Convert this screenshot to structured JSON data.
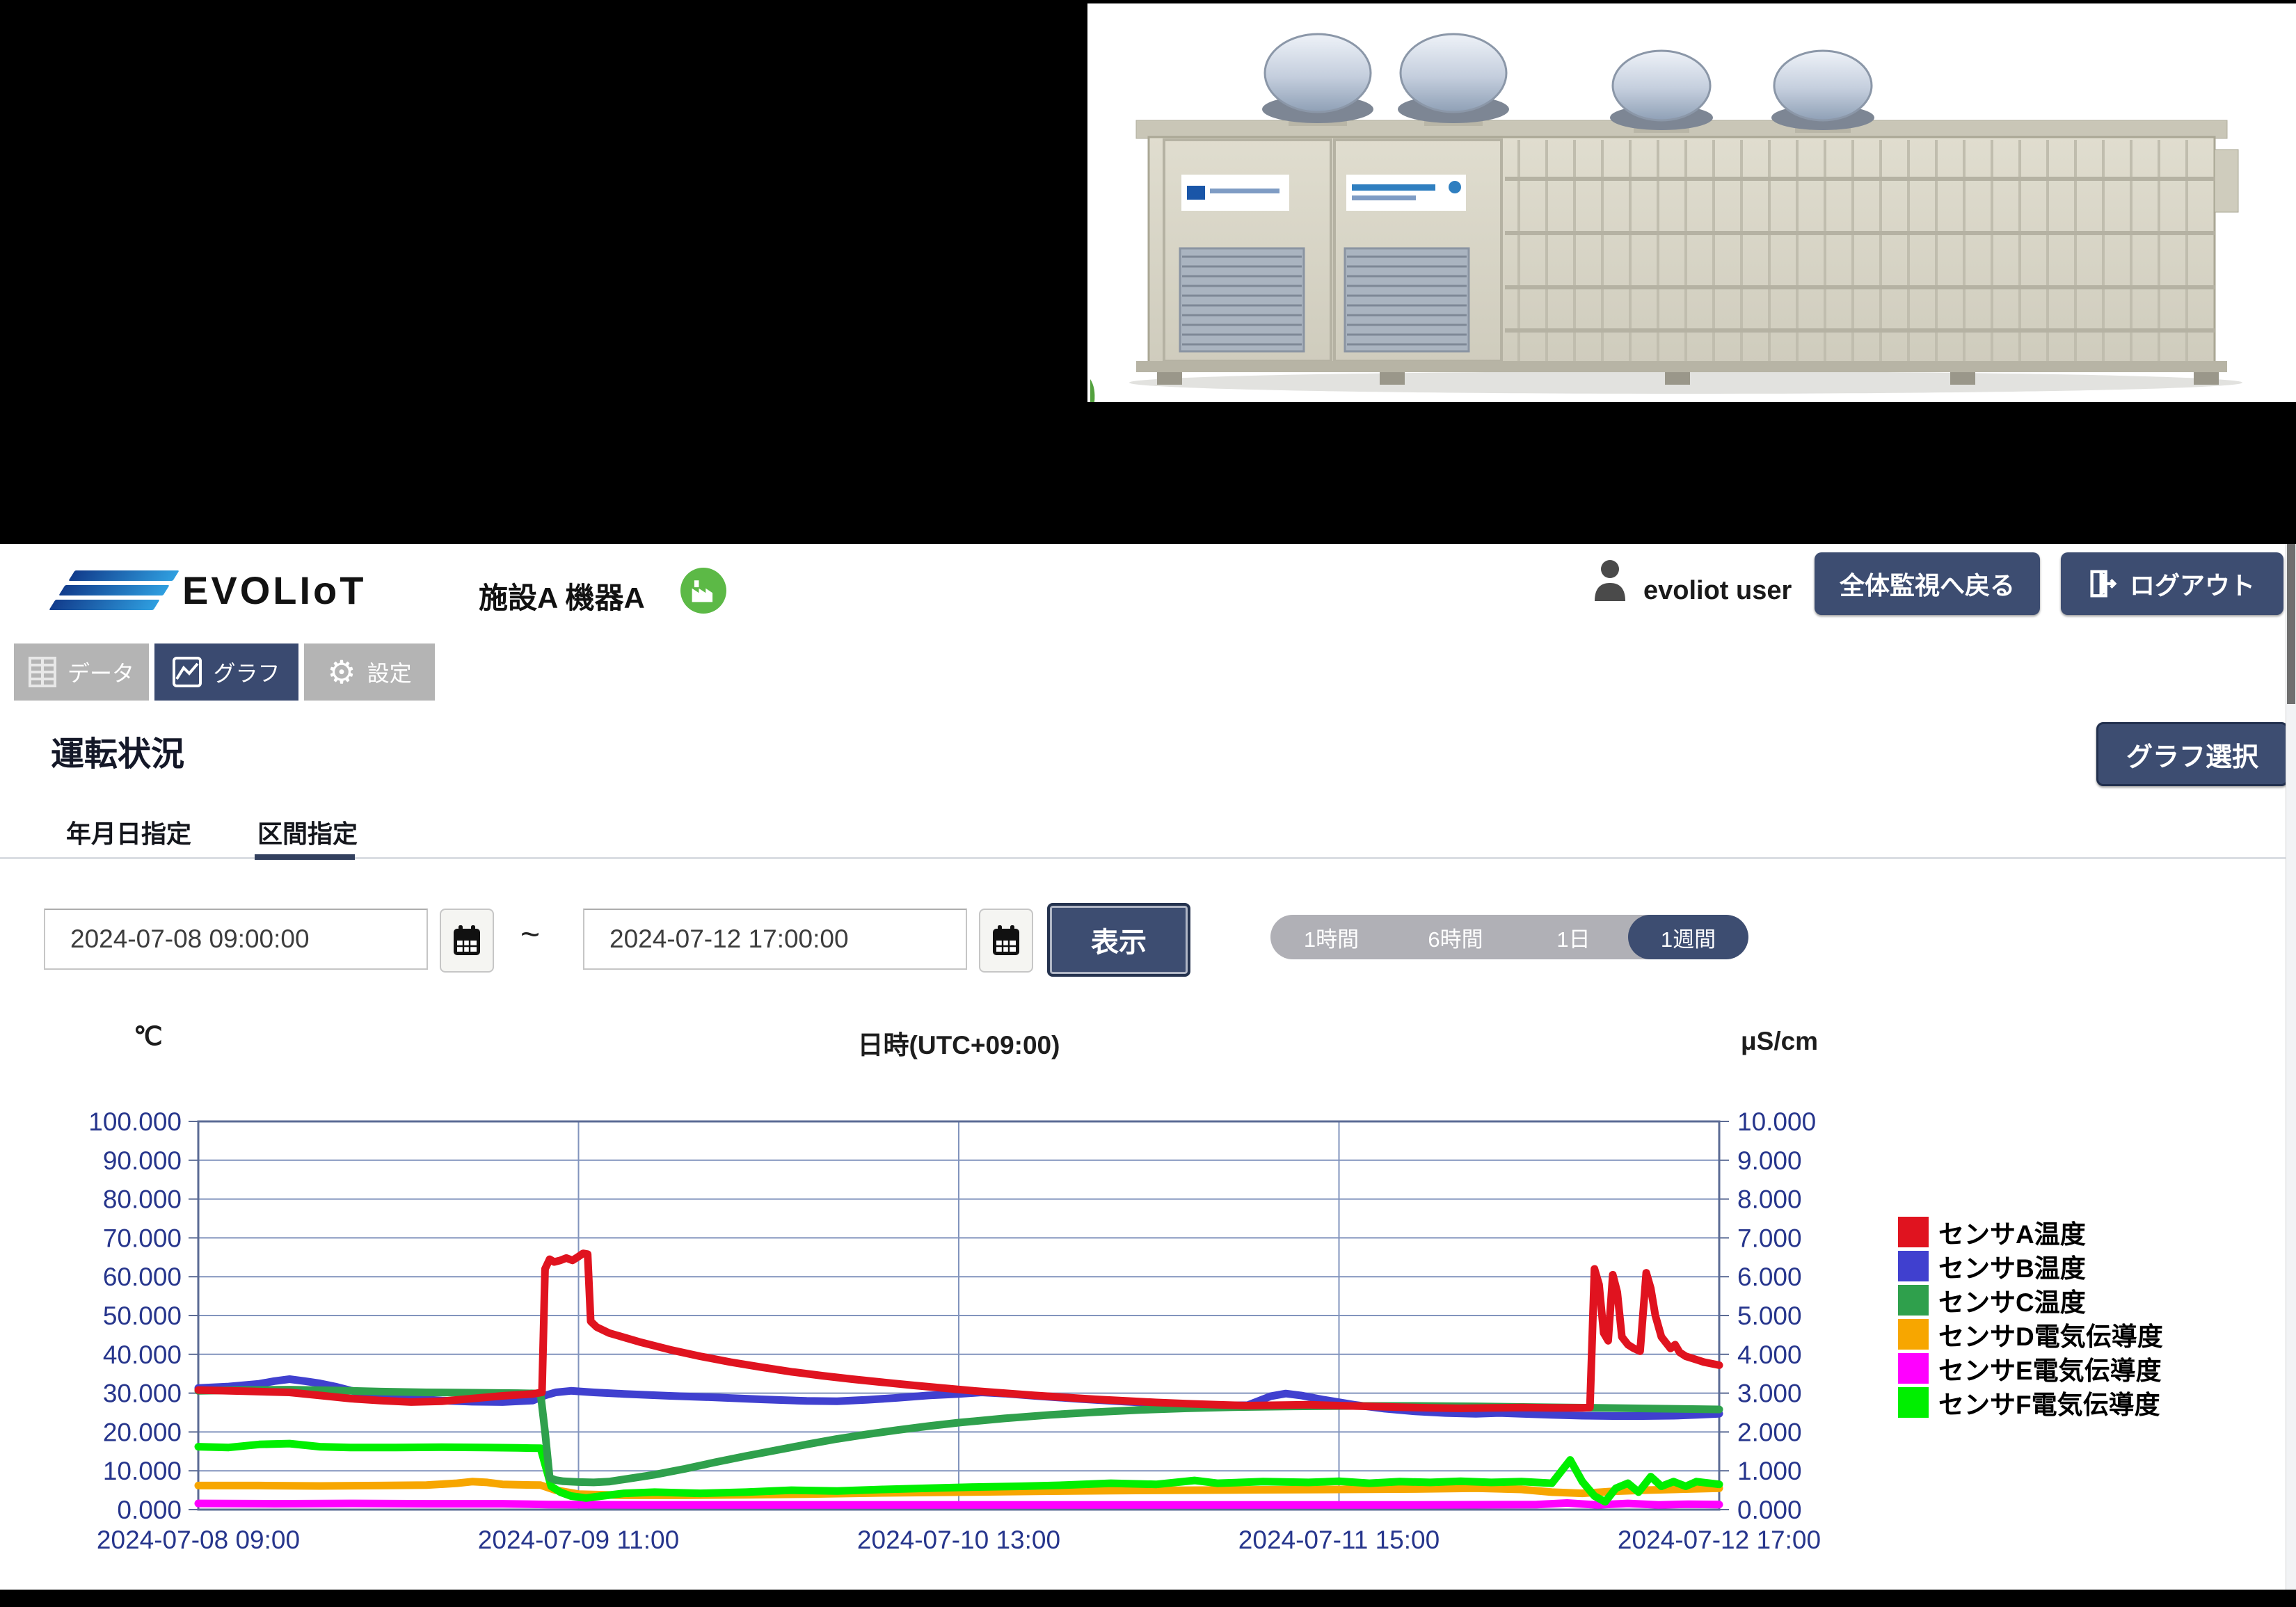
{
  "header": {
    "brand": "EVOLIoT",
    "facility_device": "施設A  機器A",
    "user": "evoliot user",
    "back_button": "全体監視へ戻る",
    "logout_button": "ログアウト"
  },
  "nav": {
    "tabs": [
      {
        "label": "データ"
      },
      {
        "label": "グラフ"
      },
      {
        "label": "設定"
      }
    ]
  },
  "page": {
    "title": "運転状況",
    "graph_select_button": "グラフ選択",
    "subtabs": [
      {
        "label": "年月日指定"
      },
      {
        "label": "区間指定"
      }
    ]
  },
  "controls": {
    "start_datetime": "2024-07-08 09:00:00",
    "end_datetime": "2024-07-12 17:00:00",
    "tilde": "~",
    "show_button": "表示",
    "ranges": [
      "1時間",
      "6時間",
      "1日",
      "1週間"
    ],
    "active_range": "1週間"
  },
  "chart_data": {
    "type": "line",
    "unit_left": "℃",
    "unit_center": "日時(UTC+09:00)",
    "unit_right": "μS/cm",
    "left_axis": {
      "min": 0,
      "max": 100,
      "ticks": [
        "100.000",
        "90.000",
        "80.000",
        "70.000",
        "60.000",
        "50.000",
        "40.000",
        "30.000",
        "20.000",
        "10.000",
        "0.000"
      ]
    },
    "right_axis": {
      "min": 0,
      "max": 10,
      "ticks": [
        "10.000",
        "9.000",
        "8.000",
        "7.000",
        "6.000",
        "5.000",
        "4.000",
        "3.000",
        "2.000",
        "1.000",
        "0.000"
      ]
    },
    "x_ticks": [
      "2024-07-08 09:00",
      "2024-07-09 11:00",
      "2024-07-10 13:00",
      "2024-07-11 15:00",
      "2024-07-12 17:00"
    ],
    "grid": {
      "h_divisions": 10,
      "v_divisions": 4,
      "grid_color": "#8294bd",
      "frame_color": "#5b6b94",
      "tick_text_color": "#26358c"
    },
    "legend_position": "right",
    "series": [
      {
        "name": "センサE電気伝導度",
        "color": "#ff00ff",
        "axis": "right",
        "legend_order": 5,
        "points": [
          [
            0,
            0.16
          ],
          [
            0.05,
            0.15
          ],
          [
            0.1,
            0.16
          ],
          [
            0.15,
            0.15
          ],
          [
            0.2,
            0.15
          ],
          [
            0.23,
            0.13
          ],
          [
            0.3,
            0.12
          ],
          [
            0.4,
            0.12
          ],
          [
            0.5,
            0.12
          ],
          [
            0.6,
            0.12
          ],
          [
            0.7,
            0.12
          ],
          [
            0.8,
            0.12
          ],
          [
            0.88,
            0.13
          ],
          [
            0.9,
            0.17
          ],
          [
            0.92,
            0.12
          ],
          [
            0.94,
            0.16
          ],
          [
            0.96,
            0.12
          ],
          [
            0.98,
            0.14
          ],
          [
            1,
            0.13
          ]
        ]
      },
      {
        "name": "センサD電気伝導度",
        "color": "#f7a600",
        "axis": "right",
        "legend_order": 4,
        "points": [
          [
            0,
            0.62
          ],
          [
            0.04,
            0.62
          ],
          [
            0.08,
            0.61
          ],
          [
            0.12,
            0.62
          ],
          [
            0.15,
            0.63
          ],
          [
            0.17,
            0.68
          ],
          [
            0.18,
            0.72
          ],
          [
            0.19,
            0.7
          ],
          [
            0.2,
            0.65
          ],
          [
            0.21,
            0.64
          ],
          [
            0.225,
            0.63
          ],
          [
            0.235,
            0.5
          ],
          [
            0.25,
            0.4
          ],
          [
            0.28,
            0.37
          ],
          [
            0.32,
            0.37
          ],
          [
            0.36,
            0.38
          ],
          [
            0.4,
            0.4
          ],
          [
            0.45,
            0.43
          ],
          [
            0.5,
            0.45
          ],
          [
            0.55,
            0.47
          ],
          [
            0.6,
            0.49
          ],
          [
            0.65,
            0.5
          ],
          [
            0.7,
            0.51
          ],
          [
            0.75,
            0.52
          ],
          [
            0.8,
            0.53
          ],
          [
            0.84,
            0.55
          ],
          [
            0.87,
            0.52
          ],
          [
            0.89,
            0.45
          ],
          [
            0.91,
            0.42
          ],
          [
            0.93,
            0.47
          ],
          [
            0.95,
            0.5
          ],
          [
            0.97,
            0.52
          ],
          [
            1,
            0.55
          ]
        ]
      },
      {
        "name": "センサF電気伝導度",
        "color": "#00ef00",
        "axis": "right",
        "legend_order": 6,
        "points": [
          [
            0,
            1.62
          ],
          [
            0.02,
            1.6
          ],
          [
            0.04,
            1.68
          ],
          [
            0.06,
            1.7
          ],
          [
            0.08,
            1.62
          ],
          [
            0.1,
            1.6
          ],
          [
            0.13,
            1.6
          ],
          [
            0.16,
            1.61
          ],
          [
            0.19,
            1.6
          ],
          [
            0.21,
            1.59
          ],
          [
            0.225,
            1.58
          ],
          [
            0.232,
            0.6
          ],
          [
            0.238,
            0.45
          ],
          [
            0.245,
            0.35
          ],
          [
            0.255,
            0.3
          ],
          [
            0.265,
            0.35
          ],
          [
            0.28,
            0.42
          ],
          [
            0.3,
            0.45
          ],
          [
            0.33,
            0.42
          ],
          [
            0.36,
            0.45
          ],
          [
            0.39,
            0.5
          ],
          [
            0.42,
            0.48
          ],
          [
            0.45,
            0.52
          ],
          [
            0.48,
            0.55
          ],
          [
            0.51,
            0.58
          ],
          [
            0.54,
            0.6
          ],
          [
            0.57,
            0.63
          ],
          [
            0.6,
            0.68
          ],
          [
            0.63,
            0.65
          ],
          [
            0.655,
            0.75
          ],
          [
            0.67,
            0.68
          ],
          [
            0.7,
            0.72
          ],
          [
            0.73,
            0.7
          ],
          [
            0.75,
            0.73
          ],
          [
            0.77,
            0.68
          ],
          [
            0.79,
            0.72
          ],
          [
            0.81,
            0.7
          ],
          [
            0.83,
            0.73
          ],
          [
            0.85,
            0.7
          ],
          [
            0.87,
            0.72
          ],
          [
            0.89,
            0.68
          ],
          [
            0.902,
            1.28
          ],
          [
            0.91,
            0.72
          ],
          [
            0.918,
            0.35
          ],
          [
            0.925,
            0.2
          ],
          [
            0.932,
            0.55
          ],
          [
            0.94,
            0.68
          ],
          [
            0.947,
            0.45
          ],
          [
            0.955,
            0.85
          ],
          [
            0.962,
            0.6
          ],
          [
            0.97,
            0.72
          ],
          [
            0.978,
            0.6
          ],
          [
            0.985,
            0.72
          ],
          [
            1,
            0.65
          ]
        ]
      },
      {
        "name": "センサB温度",
        "color": "#4040cf",
        "axis": "left",
        "legend_order": 2,
        "points": [
          [
            0,
            31.3
          ],
          [
            0.02,
            31.7
          ],
          [
            0.04,
            32.4
          ],
          [
            0.05,
            33.1
          ],
          [
            0.06,
            33.6
          ],
          [
            0.07,
            33.1
          ],
          [
            0.08,
            32.5
          ],
          [
            0.09,
            31.7
          ],
          [
            0.1,
            30.7
          ],
          [
            0.11,
            29.8
          ],
          [
            0.12,
            29.2
          ],
          [
            0.14,
            28.6
          ],
          [
            0.16,
            28.1
          ],
          [
            0.18,
            27.8
          ],
          [
            0.2,
            27.7
          ],
          [
            0.22,
            28.1
          ],
          [
            0.228,
            29.4
          ],
          [
            0.235,
            30.2
          ],
          [
            0.245,
            30.6
          ],
          [
            0.26,
            30.2
          ],
          [
            0.28,
            29.8
          ],
          [
            0.31,
            29.3
          ],
          [
            0.34,
            28.9
          ],
          [
            0.37,
            28.4
          ],
          [
            0.4,
            28
          ],
          [
            0.42,
            27.9
          ],
          [
            0.44,
            28.3
          ],
          [
            0.46,
            28.8
          ],
          [
            0.48,
            29.4
          ],
          [
            0.5,
            29.8
          ],
          [
            0.515,
            30.2
          ],
          [
            0.53,
            29.9
          ],
          [
            0.55,
            29.3
          ],
          [
            0.58,
            28.5
          ],
          [
            0.61,
            27.8
          ],
          [
            0.64,
            27.2
          ],
          [
            0.67,
            26.8
          ],
          [
            0.69,
            26.9
          ],
          [
            0.705,
            29.2
          ],
          [
            0.715,
            29.9
          ],
          [
            0.725,
            29.4
          ],
          [
            0.74,
            28.3
          ],
          [
            0.76,
            27
          ],
          [
            0.78,
            26
          ],
          [
            0.8,
            25.3
          ],
          [
            0.82,
            24.9
          ],
          [
            0.84,
            24.7
          ],
          [
            0.855,
            24.9
          ],
          [
            0.87,
            24.7
          ],
          [
            0.89,
            24.4
          ],
          [
            0.91,
            24.2
          ],
          [
            0.93,
            24.1
          ],
          [
            0.95,
            24.1
          ],
          [
            0.97,
            24.2
          ],
          [
            0.985,
            24.4
          ],
          [
            1,
            24.7
          ]
        ]
      },
      {
        "name": "センサC温度",
        "color": "#2fa04c",
        "axis": "left",
        "legend_order": 3,
        "points": [
          [
            0,
            30.6
          ],
          [
            0.03,
            30.8
          ],
          [
            0.06,
            30.9
          ],
          [
            0.09,
            30.7
          ],
          [
            0.12,
            30.4
          ],
          [
            0.15,
            30.2
          ],
          [
            0.18,
            30.1
          ],
          [
            0.21,
            30
          ],
          [
            0.225,
            29.9
          ],
          [
            0.228,
            20
          ],
          [
            0.231,
            8.2
          ],
          [
            0.235,
            7.6
          ],
          [
            0.24,
            7.3
          ],
          [
            0.25,
            7.1
          ],
          [
            0.26,
            7
          ],
          [
            0.27,
            7.2
          ],
          [
            0.28,
            7.8
          ],
          [
            0.3,
            9
          ],
          [
            0.32,
            10.5
          ],
          [
            0.34,
            12.2
          ],
          [
            0.36,
            13.8
          ],
          [
            0.38,
            15.3
          ],
          [
            0.4,
            16.8
          ],
          [
            0.42,
            18.2
          ],
          [
            0.44,
            19.4
          ],
          [
            0.46,
            20.5
          ],
          [
            0.48,
            21.5
          ],
          [
            0.5,
            22.4
          ],
          [
            0.53,
            23.5
          ],
          [
            0.56,
            24.4
          ],
          [
            0.59,
            25.1
          ],
          [
            0.62,
            25.7
          ],
          [
            0.65,
            26.1
          ],
          [
            0.68,
            26.4
          ],
          [
            0.72,
            26.6
          ],
          [
            0.76,
            26.7
          ],
          [
            0.8,
            26.7
          ],
          [
            0.84,
            26.6
          ],
          [
            0.88,
            26.4
          ],
          [
            0.92,
            26.2
          ],
          [
            0.96,
            26
          ],
          [
            1,
            25.8
          ]
        ]
      },
      {
        "name": "センサA温度",
        "color": "#e0131f",
        "axis": "left",
        "legend_order": 1,
        "points": [
          [
            0,
            30.8
          ],
          [
            0.03,
            30.5
          ],
          [
            0.06,
            30.2
          ],
          [
            0.08,
            29.4
          ],
          [
            0.1,
            28.6
          ],
          [
            0.12,
            28.1
          ],
          [
            0.14,
            27.7
          ],
          [
            0.16,
            27.9
          ],
          [
            0.18,
            28.6
          ],
          [
            0.2,
            29.3
          ],
          [
            0.22,
            29.8
          ],
          [
            0.226,
            30.2
          ],
          [
            0.228,
            62
          ],
          [
            0.231,
            64.5
          ],
          [
            0.234,
            63.8
          ],
          [
            0.238,
            64.2
          ],
          [
            0.242,
            64.8
          ],
          [
            0.246,
            64.2
          ],
          [
            0.25,
            65.2
          ],
          [
            0.253,
            66
          ],
          [
            0.256,
            65.8
          ],
          [
            0.258,
            48.5
          ],
          [
            0.262,
            47
          ],
          [
            0.27,
            45.5
          ],
          [
            0.29,
            43.2
          ],
          [
            0.31,
            41.2
          ],
          [
            0.33,
            39.5
          ],
          [
            0.35,
            38
          ],
          [
            0.37,
            36.7
          ],
          [
            0.39,
            35.5
          ],
          [
            0.41,
            34.5
          ],
          [
            0.43,
            33.6
          ],
          [
            0.45,
            32.8
          ],
          [
            0.47,
            32
          ],
          [
            0.49,
            31.3
          ],
          [
            0.51,
            30.6
          ],
          [
            0.53,
            30
          ],
          [
            0.55,
            29.4
          ],
          [
            0.57,
            28.9
          ],
          [
            0.59,
            28.4
          ],
          [
            0.61,
            28
          ],
          [
            0.63,
            27.6
          ],
          [
            0.65,
            27.3
          ],
          [
            0.67,
            27
          ],
          [
            0.69,
            26.8
          ],
          [
            0.71,
            26.9
          ],
          [
            0.73,
            27
          ],
          [
            0.75,
            26.8
          ],
          [
            0.77,
            26.6
          ],
          [
            0.79,
            26.4
          ],
          [
            0.81,
            26.2
          ],
          [
            0.83,
            26.1
          ],
          [
            0.85,
            26.2
          ],
          [
            0.87,
            26.3
          ],
          [
            0.89,
            26.2
          ],
          [
            0.91,
            26.2
          ],
          [
            0.915,
            26.3
          ],
          [
            0.918,
            62
          ],
          [
            0.921,
            58
          ],
          [
            0.924,
            45.5
          ],
          [
            0.927,
            43.5
          ],
          [
            0.93,
            60.5
          ],
          [
            0.933,
            56
          ],
          [
            0.936,
            44.5
          ],
          [
            0.94,
            42.5
          ],
          [
            0.944,
            41.5
          ],
          [
            0.948,
            40.8
          ],
          [
            0.952,
            61
          ],
          [
            0.955,
            57
          ],
          [
            0.958,
            50
          ],
          [
            0.962,
            44.5
          ],
          [
            0.965,
            43
          ],
          [
            0.968,
            41.5
          ],
          [
            0.971,
            42.5
          ],
          [
            0.974,
            40.5
          ],
          [
            0.978,
            39.5
          ],
          [
            0.982,
            39
          ],
          [
            0.986,
            38.5
          ],
          [
            0.99,
            38
          ],
          [
            1,
            37.2
          ]
        ]
      }
    ]
  }
}
